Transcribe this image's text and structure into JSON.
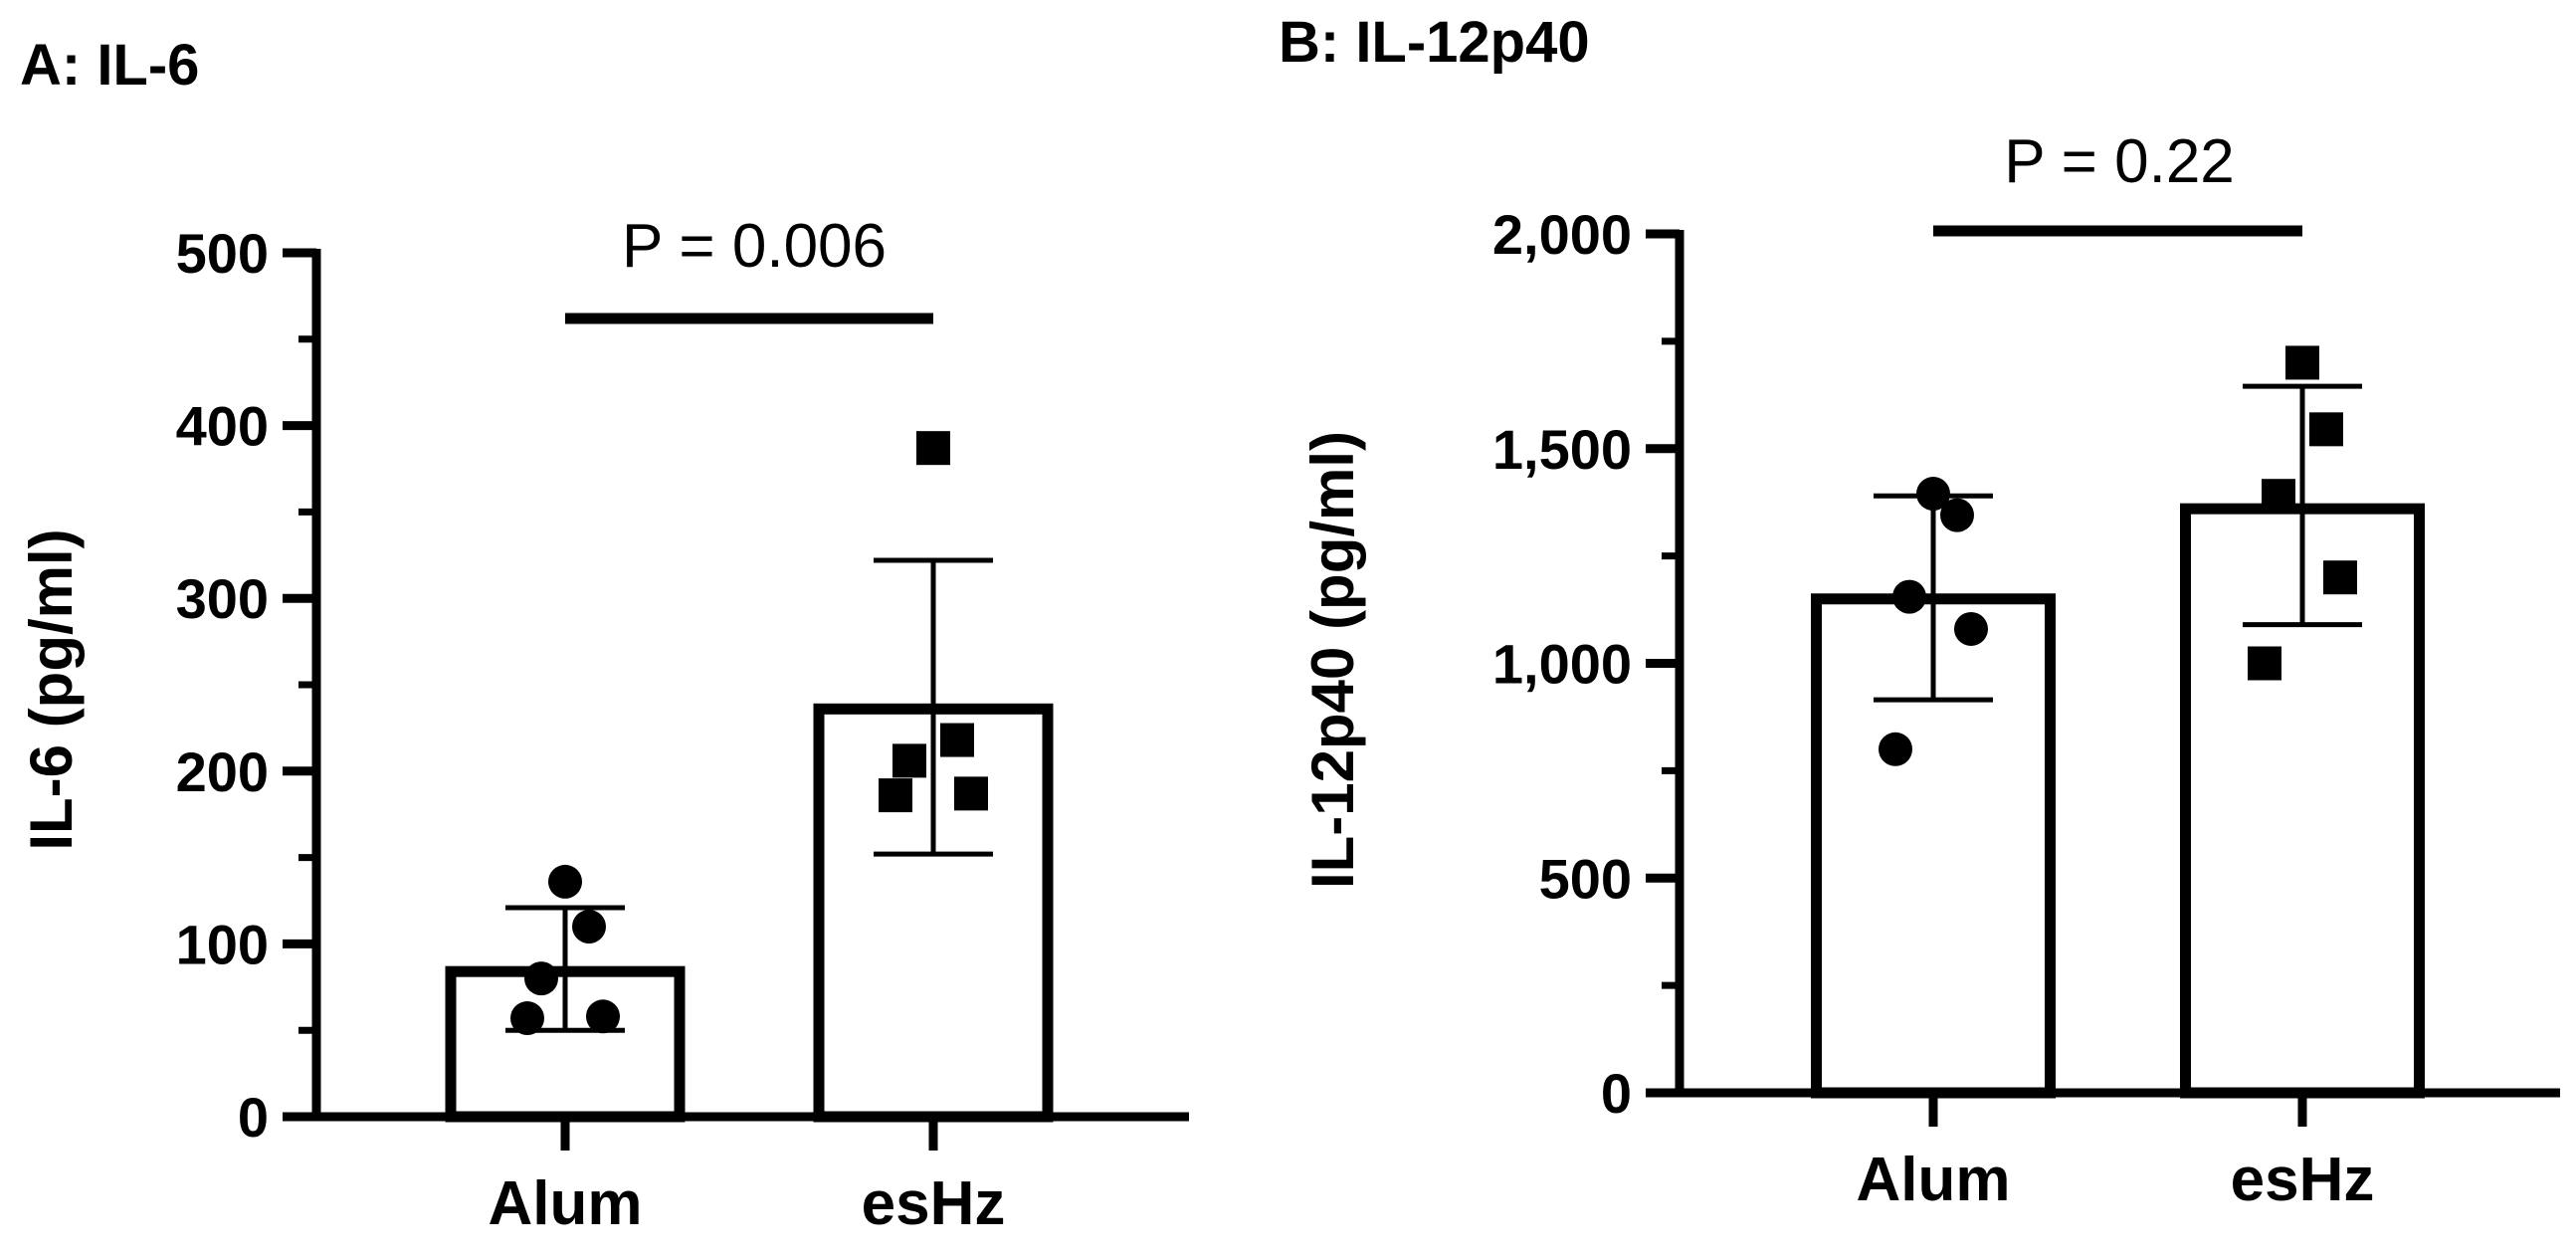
{
  "chart_data": [
    {
      "type": "bar",
      "title": "A: IL-6",
      "ylabel": "IL-6 (pg/ml)",
      "xlabel": "",
      "categories": [
        "Alum",
        "esHz"
      ],
      "values": [
        84,
        236
      ],
      "error": [
        {
          "low": 50,
          "high": 121
        },
        {
          "low": 152,
          "high": 322
        }
      ],
      "points": [
        {
          "marker": "circle",
          "values": [
            57,
            58,
            80,
            110,
            136
          ]
        },
        {
          "marker": "square",
          "values": [
            186,
            187,
            206,
            218,
            387
          ]
        }
      ],
      "ylim": [
        0,
        500
      ],
      "yticks": [
        0,
        100,
        200,
        300,
        400,
        500
      ],
      "ytick_labels": [
        "0",
        "100",
        "200",
        "300",
        "400",
        "500"
      ],
      "annotation": "P = 0.006",
      "grid": false
    },
    {
      "type": "bar",
      "title": "B: IL-12p40",
      "ylabel": "IL-12p40 (pg/ml)",
      "xlabel": "",
      "categories": [
        "Alum",
        "esHz"
      ],
      "values": [
        1150,
        1360
      ],
      "error": [
        {
          "low": 915,
          "high": 1390
        },
        {
          "low": 1090,
          "high": 1645
        }
      ],
      "points": [
        {
          "marker": "circle",
          "values": [
            800,
            1080,
            1155,
            1345,
            1395
          ]
        },
        {
          "marker": "square",
          "values": [
            1000,
            1200,
            1390,
            1545,
            1700
          ]
        }
      ],
      "ylim": [
        0,
        2000
      ],
      "yticks": [
        0,
        500,
        1000,
        1500,
        2000
      ],
      "ytick_labels": [
        "0",
        "500",
        "1,000",
        "1,500",
        "2,000"
      ],
      "annotation": "P = 0.22",
      "grid": false
    }
  ]
}
